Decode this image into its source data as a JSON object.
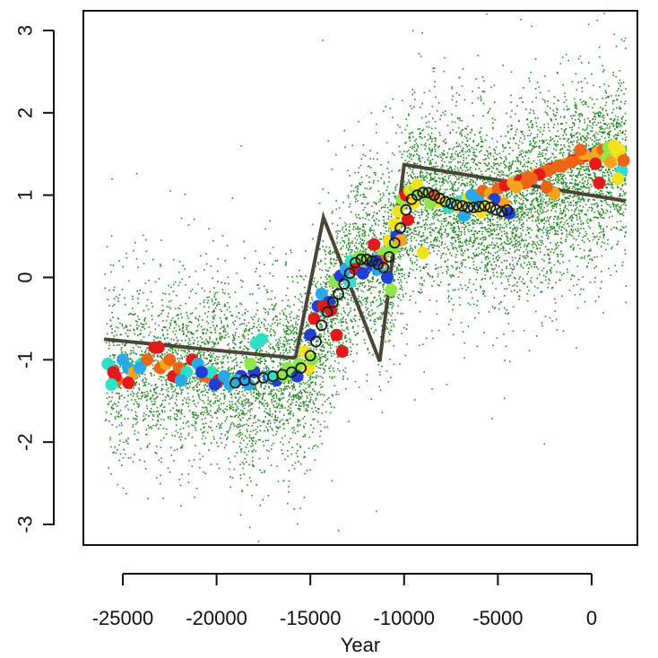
{
  "chart_data": {
    "type": "scatter",
    "title": "",
    "xlabel": "Year",
    "ylabel": "",
    "xlim": [
      -26000,
      2000
    ],
    "ylim": [
      -3.2,
      3.2
    ],
    "x_ticks": [
      -25000,
      -20000,
      -15000,
      -10000,
      -5000,
      0
    ],
    "x_tick_labels": [
      "-25000",
      "-20000",
      "-15000",
      "-10000",
      "-5000",
      "0"
    ],
    "y_ticks": [
      -3,
      -2,
      -1,
      0,
      1,
      2,
      3
    ],
    "y_tick_labels": [
      "-3",
      "-2",
      "-1",
      "0",
      "1",
      "2",
      "3"
    ],
    "colors": {
      "background_points": "#1f8a1f",
      "trend_line": "#4a4536",
      "spectrum": [
        "#1f3fd6",
        "#2aa8e8",
        "#2fe0c8",
        "#8ee84a",
        "#f2e21c",
        "#f7a51c",
        "#f06418",
        "#e31a1a"
      ],
      "circle_outline": "#1a1a1a"
    },
    "series": [
      {
        "name": "trend line",
        "style": "line",
        "x": [
          -26000,
          -15800,
          -14300,
          -11300,
          -10000,
          1800
        ],
        "y": [
          -0.75,
          -0.98,
          0.73,
          -1.02,
          1.37,
          0.93
        ]
      },
      {
        "name": "stack composite (open circles)",
        "style": "open-circle",
        "x": [
          -19000,
          -18500,
          -18000,
          -17500,
          -17000,
          -16500,
          -16000,
          -15500,
          -15000,
          -14700,
          -14400,
          -14100,
          -13800,
          -13500,
          -13200,
          -12900,
          -12600,
          -12300,
          -12000,
          -11700,
          -11400,
          -11100,
          -10800,
          -10500,
          -10200,
          -9900,
          -9600,
          -9300,
          -9000,
          -8700,
          -8400,
          -8100,
          -7800,
          -7500,
          -7200,
          -6900,
          -6600,
          -6300,
          -6000,
          -5700,
          -5400,
          -5100,
          -4800,
          -4500
        ],
        "y": [
          -1.28,
          -1.25,
          -1.24,
          -1.22,
          -1.2,
          -1.18,
          -1.15,
          -1.1,
          -0.95,
          -0.78,
          -0.58,
          -0.42,
          -0.3,
          -0.2,
          -0.08,
          0.05,
          0.18,
          0.22,
          0.22,
          0.2,
          0.16,
          0.12,
          0.25,
          0.42,
          0.6,
          0.82,
          0.95,
          1.0,
          1.03,
          1.03,
          1.0,
          0.96,
          0.92,
          0.9,
          0.88,
          0.87,
          0.85,
          0.85,
          0.86,
          0.87,
          0.85,
          0.82,
          0.8,
          0.82
        ]
      },
      {
        "name": "individual records (coloured)",
        "style": "filled-circle",
        "x": [
          -25800,
          -25500,
          -25300,
          -25000,
          -24700,
          -24400,
          -24000,
          -23700,
          -23300,
          -23000,
          -22700,
          -22300,
          -22000,
          -21600,
          -21300,
          -21000,
          -20600,
          -20300,
          -19900,
          -19600,
          -19300,
          -19000,
          -18700,
          -18300,
          -18000,
          -17600,
          -17200,
          -16800,
          -16400,
          -16000,
          -15600,
          -15300,
          -15000,
          -14800,
          -14600,
          -14400,
          -14200,
          -14000,
          -13700,
          -13400,
          -13100,
          -12800,
          -12400,
          -12000,
          -11700,
          -11400,
          -11100,
          -10800,
          -10500,
          -10300,
          -10100,
          -9900,
          -9700,
          -9400,
          -9100,
          -8800,
          -8500,
          -8200,
          -7800,
          -7400,
          -7000,
          -6600,
          -6200,
          -5800,
          -5400,
          -5000,
          -4600,
          -4200,
          -3800,
          -3400,
          -3000,
          -2600,
          -2200,
          -1800,
          -1400,
          -1000,
          -600,
          -300,
          0,
          300,
          600,
          900,
          1200,
          1500,
          -25400,
          -24100,
          -22500,
          -20800,
          -18900,
          -17100,
          -15100,
          -13900,
          -12600,
          -11200,
          -10600,
          -9500,
          -8300,
          -7100,
          -5900,
          -4700,
          -3500,
          -2300,
          -1100,
          100,
          1300,
          -23100,
          -14300,
          -12900,
          -11600,
          -10900,
          -10400,
          -9800,
          -9200,
          -8600,
          -7600,
          -6400,
          -5200,
          -4000,
          -2800,
          -1600,
          -400,
          800,
          1600,
          -25600,
          -21900,
          -18200,
          -15700,
          -13300,
          -10700,
          -9000,
          -6800,
          -4400,
          -2000,
          400,
          1400,
          -17900,
          -14900,
          -12200,
          -9300,
          -6000,
          -3200,
          -600,
          1000,
          -24700,
          -20100,
          -16200,
          -13600,
          -11500,
          -10200,
          -8400,
          -5600,
          -2400,
          200,
          1700
        ],
        "y": [
          -1.05,
          -1.15,
          -1.25,
          -1.0,
          -1.1,
          -1.15,
          -1.05,
          -1.0,
          -0.85,
          -1.1,
          -1.05,
          -1.2,
          -1.1,
          -1.15,
          -1.0,
          -1.05,
          -1.2,
          -1.15,
          -1.25,
          -1.2,
          -1.3,
          -1.25,
          -1.2,
          -1.3,
          -1.15,
          -0.75,
          -1.2,
          -1.25,
          -1.2,
          -1.15,
          -1.05,
          -0.9,
          -0.7,
          -0.5,
          -0.35,
          -0.2,
          -0.4,
          -0.3,
          -0.05,
          0.02,
          0.1,
          0.2,
          0.25,
          0.22,
          0.15,
          0.1,
          0.3,
          0.45,
          0.65,
          0.8,
          0.95,
          1.0,
          1.05,
          1.08,
          1.05,
          1.0,
          0.95,
          0.92,
          0.9,
          0.88,
          0.92,
          0.95,
          1.0,
          1.05,
          1.02,
          1.08,
          1.12,
          1.15,
          1.18,
          1.22,
          1.25,
          1.28,
          1.32,
          1.35,
          1.38,
          1.42,
          1.45,
          1.48,
          1.5,
          1.52,
          1.55,
          1.58,
          1.6,
          1.55,
          -1.2,
          -1.1,
          -1.0,
          -1.15,
          -1.25,
          -1.2,
          -1.1,
          -0.4,
          0.1,
          0.2,
          0.35,
          0.9,
          0.95,
          0.85,
          0.8,
          0.9,
          1.15,
          1.3,
          1.4,
          1.45,
          1.5,
          -0.85,
          -0.35,
          -0.05,
          0.4,
          0.0,
          0.5,
          0.7,
          1.02,
          0.9,
          0.85,
          1.0,
          0.95,
          1.1,
          1.25,
          1.35,
          1.5,
          1.45,
          1.3,
          -1.3,
          -1.25,
          -1.05,
          -1.2,
          -0.9,
          -0.15,
          0.3,
          0.75,
          0.78,
          1.02,
          1.15,
          1.2,
          -0.8,
          -1.0,
          0.05,
          1.12,
          0.92,
          1.2,
          1.55,
          1.4,
          -1.28,
          -1.3,
          -1.1,
          -0.7,
          0.2,
          0.45,
          1.0,
          0.88,
          1.1,
          1.38,
          1.42
        ],
        "c": [
          2,
          7,
          6,
          1,
          1,
          5,
          2,
          6,
          7,
          6,
          5,
          7,
          6,
          2,
          7,
          1,
          6,
          2,
          7,
          1,
          1,
          3,
          0,
          1,
          0,
          2,
          0,
          0,
          3,
          2,
          3,
          4,
          0,
          7,
          0,
          1,
          2,
          0,
          3,
          0,
          1,
          2,
          3,
          3,
          0,
          1,
          3,
          4,
          4,
          4,
          3,
          7,
          4,
          3,
          2,
          3,
          4,
          4,
          4,
          3,
          2,
          4,
          5,
          6,
          5,
          6,
          7,
          5,
          7,
          6,
          5,
          6,
          7,
          6,
          5,
          7,
          6,
          7,
          0,
          5,
          6,
          3,
          4,
          4,
          7,
          1,
          6,
          0,
          1,
          2,
          4,
          7,
          7,
          6,
          3,
          4,
          4,
          4,
          4,
          5,
          6,
          6,
          6,
          5,
          4,
          7,
          7,
          2,
          7,
          0,
          0,
          7,
          3,
          3,
          2,
          1,
          0,
          5,
          7,
          6,
          5,
          3,
          2,
          2,
          1,
          3,
          0,
          7,
          3,
          4,
          1,
          0,
          5,
          7,
          4,
          2,
          3,
          0,
          4,
          1,
          6,
          6,
          5,
          7,
          0,
          3,
          7,
          0,
          5,
          6,
          4,
          6,
          7,
          6
        ]
      }
    ],
    "background_cloud": {
      "name": "proxy records (small green dots)",
      "style": "dot",
      "count": 9000,
      "seed": 12345,
      "spread_sd_y": 0.55
    }
  }
}
